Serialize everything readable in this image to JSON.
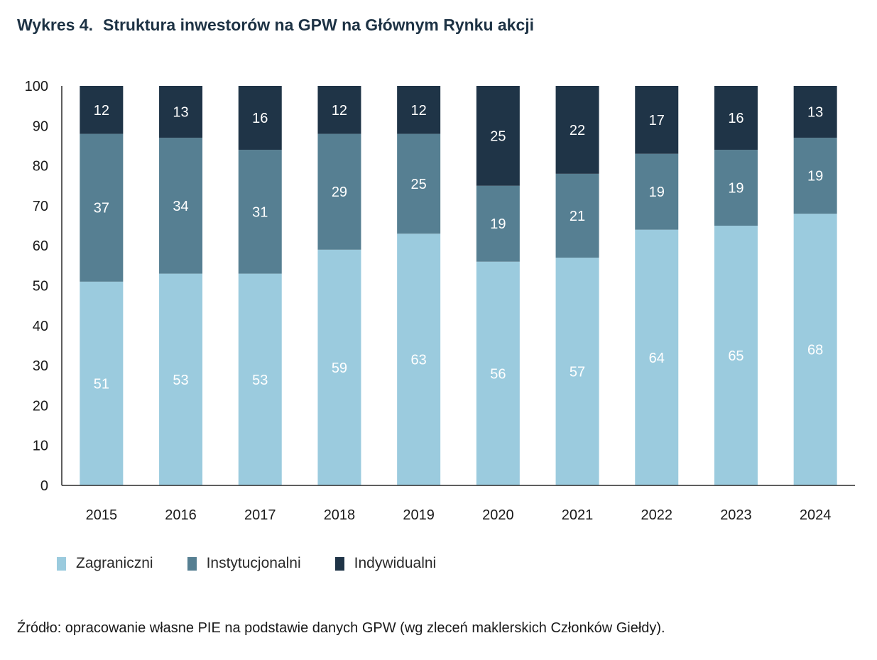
{
  "title": {
    "number": "Wykres 4.",
    "text": "Struktura inwestorów na GPW na Głównym Rynku akcji"
  },
  "source": "Źródło: opracowanie własne PIE na podstawie danych GPW (wg zleceń maklerskich Członków Giełdy).",
  "chart_data": {
    "type": "bar",
    "stacked": true,
    "categories": [
      "2015",
      "2016",
      "2017",
      "2018",
      "2019",
      "2020",
      "2021",
      "2022",
      "2023",
      "2024"
    ],
    "series": [
      {
        "name": "Zagraniczni",
        "color": "#9bcbde",
        "values": [
          51,
          53,
          53,
          59,
          63,
          56,
          57,
          64,
          65,
          68
        ]
      },
      {
        "name": "Instytucjonalni",
        "color": "#567f92",
        "values": [
          37,
          34,
          31,
          29,
          25,
          19,
          21,
          19,
          19,
          19
        ]
      },
      {
        "name": "Indywidualni",
        "color": "#1f3447",
        "values": [
          12,
          13,
          16,
          12,
          12,
          25,
          22,
          17,
          16,
          13
        ]
      }
    ],
    "ylim": [
      0,
      100
    ],
    "yticks": [
      0,
      10,
      20,
      30,
      40,
      50,
      60,
      70,
      80,
      90,
      100
    ],
    "grid": false,
    "legend_position": "bottom-left",
    "label_color": "#ffffff"
  }
}
